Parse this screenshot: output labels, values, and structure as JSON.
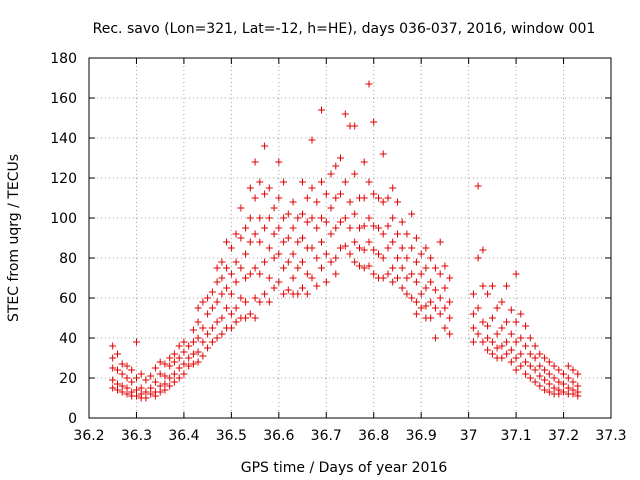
{
  "chart_data": {
    "type": "scatter",
    "title": "Rec. savo (Lon=321, Lat=-12, h=HE), days 036-037, 2016, window 001",
    "xlabel": "GPS time / Days of year 2016",
    "ylabel": "STEC from uqrg / TECUs",
    "xlim": [
      36.2,
      37.3
    ],
    "ylim": [
      0,
      180
    ],
    "xticks": [
      "36.2",
      "36.3",
      "36.4",
      "36.5",
      "36.6",
      "36.7",
      "36.8",
      "36.9",
      "37",
      "37.1",
      "37.2",
      "37.3"
    ],
    "yticks": [
      "0",
      "20",
      "40",
      "60",
      "80",
      "100",
      "120",
      "140",
      "160",
      "180"
    ],
    "grid": true,
    "marker": "+",
    "color": "#e00000",
    "points": [
      [
        36.25,
        36
      ],
      [
        36.25,
        30
      ],
      [
        36.25,
        25
      ],
      [
        36.25,
        19
      ],
      [
        36.25,
        15
      ],
      [
        36.26,
        32
      ],
      [
        36.26,
        24
      ],
      [
        36.26,
        17
      ],
      [
        36.26,
        14
      ],
      [
        36.27,
        27
      ],
      [
        36.27,
        22
      ],
      [
        36.27,
        16
      ],
      [
        36.27,
        13
      ],
      [
        36.28,
        26
      ],
      [
        36.28,
        20
      ],
      [
        36.28,
        15
      ],
      [
        36.28,
        12
      ],
      [
        36.29,
        24
      ],
      [
        36.29,
        18
      ],
      [
        36.29,
        13
      ],
      [
        36.29,
        11
      ],
      [
        36.3,
        38
      ],
      [
        36.3,
        20
      ],
      [
        36.3,
        14
      ],
      [
        36.3,
        11
      ],
      [
        36.31,
        22
      ],
      [
        36.31,
        15
      ],
      [
        36.31,
        12
      ],
      [
        36.31,
        10
      ],
      [
        36.32,
        19
      ],
      [
        36.32,
        13
      ],
      [
        36.32,
        10
      ],
      [
        36.33,
        21
      ],
      [
        36.33,
        15
      ],
      [
        36.33,
        12
      ],
      [
        36.34,
        25
      ],
      [
        36.34,
        18
      ],
      [
        36.34,
        13
      ],
      [
        36.34,
        11
      ],
      [
        36.35,
        28
      ],
      [
        36.35,
        22
      ],
      [
        36.35,
        16
      ],
      [
        36.35,
        13
      ],
      [
        36.36,
        27
      ],
      [
        36.36,
        21
      ],
      [
        36.36,
        17
      ],
      [
        36.36,
        14
      ],
      [
        36.37,
        30
      ],
      [
        36.37,
        26
      ],
      [
        36.37,
        20
      ],
      [
        36.37,
        16
      ],
      [
        36.38,
        32
      ],
      [
        36.38,
        28
      ],
      [
        36.38,
        22
      ],
      [
        36.38,
        18
      ],
      [
        36.39,
        36
      ],
      [
        36.39,
        30
      ],
      [
        36.39,
        25
      ],
      [
        36.39,
        20
      ],
      [
        36.4,
        38
      ],
      [
        36.4,
        33
      ],
      [
        36.4,
        27
      ],
      [
        36.4,
        22
      ],
      [
        36.41,
        36
      ],
      [
        36.41,
        30
      ],
      [
        36.41,
        26
      ],
      [
        36.42,
        44
      ],
      [
        36.42,
        38
      ],
      [
        36.42,
        32
      ],
      [
        36.42,
        27
      ],
      [
        36.43,
        55
      ],
      [
        36.43,
        48
      ],
      [
        36.43,
        40
      ],
      [
        36.43,
        33
      ],
      [
        36.43,
        28
      ],
      [
        36.44,
        58
      ],
      [
        36.44,
        45
      ],
      [
        36.44,
        38
      ],
      [
        36.44,
        31
      ],
      [
        36.45,
        60
      ],
      [
        36.45,
        52
      ],
      [
        36.45,
        42
      ],
      [
        36.45,
        35
      ],
      [
        36.46,
        63
      ],
      [
        36.46,
        55
      ],
      [
        36.46,
        45
      ],
      [
        36.46,
        38
      ],
      [
        36.47,
        75
      ],
      [
        36.47,
        68
      ],
      [
        36.47,
        58
      ],
      [
        36.47,
        48
      ],
      [
        36.47,
        40
      ],
      [
        36.48,
        78
      ],
      [
        36.48,
        70
      ],
      [
        36.48,
        62
      ],
      [
        36.48,
        50
      ],
      [
        36.48,
        42
      ],
      [
        36.49,
        88
      ],
      [
        36.49,
        75
      ],
      [
        36.49,
        65
      ],
      [
        36.49,
        55
      ],
      [
        36.49,
        45
      ],
      [
        36.5,
        85
      ],
      [
        36.5,
        72
      ],
      [
        36.5,
        62
      ],
      [
        36.5,
        52
      ],
      [
        36.5,
        45
      ],
      [
        36.51,
        92
      ],
      [
        36.51,
        78
      ],
      [
        36.51,
        68
      ],
      [
        36.51,
        55
      ],
      [
        36.51,
        48
      ],
      [
        36.52,
        105
      ],
      [
        36.52,
        90
      ],
      [
        36.52,
        75
      ],
      [
        36.52,
        60
      ],
      [
        36.52,
        50
      ],
      [
        36.53,
        95
      ],
      [
        36.53,
        82
      ],
      [
        36.53,
        70
      ],
      [
        36.53,
        58
      ],
      [
        36.53,
        50
      ],
      [
        36.54,
        115
      ],
      [
        36.54,
        100
      ],
      [
        36.54,
        88
      ],
      [
        36.54,
        72
      ],
      [
        36.54,
        52
      ],
      [
        36.55,
        128
      ],
      [
        36.55,
        110
      ],
      [
        36.55,
        92
      ],
      [
        36.55,
        75
      ],
      [
        36.55,
        60
      ],
      [
        36.55,
        50
      ],
      [
        36.56,
        118
      ],
      [
        36.56,
        100
      ],
      [
        36.56,
        88
      ],
      [
        36.56,
        72
      ],
      [
        36.56,
        58
      ],
      [
        36.57,
        136
      ],
      [
        36.57,
        112
      ],
      [
        36.57,
        95
      ],
      [
        36.57,
        78
      ],
      [
        36.57,
        62
      ],
      [
        36.58,
        115
      ],
      [
        36.58,
        100
      ],
      [
        36.58,
        85
      ],
      [
        36.58,
        70
      ],
      [
        36.58,
        58
      ],
      [
        36.59,
        105
      ],
      [
        36.59,
        92
      ],
      [
        36.59,
        80
      ],
      [
        36.59,
        65
      ],
      [
        36.6,
        128
      ],
      [
        36.6,
        110
      ],
      [
        36.6,
        95
      ],
      [
        36.6,
        82
      ],
      [
        36.6,
        68
      ],
      [
        36.61,
        118
      ],
      [
        36.61,
        100
      ],
      [
        36.61,
        88
      ],
      [
        36.61,
        75
      ],
      [
        36.61,
        62
      ],
      [
        36.62,
        102
      ],
      [
        36.62,
        90
      ],
      [
        36.62,
        78
      ],
      [
        36.62,
        64
      ],
      [
        36.63,
        108
      ],
      [
        36.63,
        95
      ],
      [
        36.63,
        82
      ],
      [
        36.63,
        70
      ],
      [
        36.63,
        62
      ],
      [
        36.64,
        100
      ],
      [
        36.64,
        88
      ],
      [
        36.64,
        75
      ],
      [
        36.64,
        62
      ],
      [
        36.65,
        118
      ],
      [
        36.65,
        102
      ],
      [
        36.65,
        90
      ],
      [
        36.65,
        78
      ],
      [
        36.65,
        65
      ],
      [
        36.66,
        110
      ],
      [
        36.66,
        98
      ],
      [
        36.66,
        85
      ],
      [
        36.66,
        72
      ],
      [
        36.66,
        62
      ],
      [
        36.67,
        139
      ],
      [
        36.67,
        115
      ],
      [
        36.67,
        100
      ],
      [
        36.67,
        85
      ],
      [
        36.67,
        70
      ],
      [
        36.68,
        108
      ],
      [
        36.68,
        95
      ],
      [
        36.68,
        80
      ],
      [
        36.68,
        66
      ],
      [
        36.69,
        154
      ],
      [
        36.69,
        118
      ],
      [
        36.69,
        100
      ],
      [
        36.69,
        88
      ],
      [
        36.69,
        75
      ],
      [
        36.7,
        112
      ],
      [
        36.7,
        98
      ],
      [
        36.7,
        82
      ],
      [
        36.7,
        68
      ],
      [
        36.71,
        122
      ],
      [
        36.71,
        105
      ],
      [
        36.71,
        92
      ],
      [
        36.71,
        78
      ],
      [
        36.72,
        126
      ],
      [
        36.72,
        110
      ],
      [
        36.72,
        95
      ],
      [
        36.72,
        80
      ],
      [
        36.72,
        72
      ],
      [
        36.73,
        130
      ],
      [
        36.73,
        112
      ],
      [
        36.73,
        98
      ],
      [
        36.73,
        85
      ],
      [
        36.74,
        152
      ],
      [
        36.74,
        118
      ],
      [
        36.74,
        100
      ],
      [
        36.74,
        86
      ],
      [
        36.75,
        146
      ],
      [
        36.75,
        108
      ],
      [
        36.75,
        95
      ],
      [
        36.75,
        82
      ],
      [
        36.76,
        146
      ],
      [
        36.76,
        122
      ],
      [
        36.76,
        102
      ],
      [
        36.76,
        88
      ],
      [
        36.76,
        78
      ],
      [
        36.77,
        110
      ],
      [
        36.77,
        95
      ],
      [
        36.77,
        85
      ],
      [
        36.77,
        76
      ],
      [
        36.78,
        128
      ],
      [
        36.78,
        110
      ],
      [
        36.78,
        96
      ],
      [
        36.78,
        84
      ],
      [
        36.78,
        75
      ],
      [
        36.79,
        167
      ],
      [
        36.79,
        118
      ],
      [
        36.79,
        100
      ],
      [
        36.79,
        88
      ],
      [
        36.79,
        76
      ],
      [
        36.8,
        148
      ],
      [
        36.8,
        112
      ],
      [
        36.8,
        96
      ],
      [
        36.8,
        84
      ],
      [
        36.8,
        72
      ],
      [
        36.81,
        110
      ],
      [
        36.81,
        95
      ],
      [
        36.81,
        82
      ],
      [
        36.81,
        70
      ],
      [
        36.82,
        132
      ],
      [
        36.82,
        108
      ],
      [
        36.82,
        92
      ],
      [
        36.82,
        80
      ],
      [
        36.82,
        70
      ],
      [
        36.83,
        110
      ],
      [
        36.83,
        96
      ],
      [
        36.83,
        85
      ],
      [
        36.83,
        72
      ],
      [
        36.84,
        115
      ],
      [
        36.84,
        100
      ],
      [
        36.84,
        88
      ],
      [
        36.84,
        75
      ],
      [
        36.84,
        68
      ],
      [
        36.85,
        108
      ],
      [
        36.85,
        92
      ],
      [
        36.85,
        80
      ],
      [
        36.85,
        70
      ],
      [
        36.86,
        98
      ],
      [
        36.86,
        85
      ],
      [
        36.86,
        75
      ],
      [
        36.86,
        65
      ],
      [
        36.87,
        92
      ],
      [
        36.87,
        80
      ],
      [
        36.87,
        70
      ],
      [
        36.87,
        62
      ],
      [
        36.88,
        102
      ],
      [
        36.88,
        85
      ],
      [
        36.88,
        72
      ],
      [
        36.88,
        60
      ],
      [
        36.89,
        90
      ],
      [
        36.89,
        78
      ],
      [
        36.89,
        68
      ],
      [
        36.89,
        58
      ],
      [
        36.89,
        52
      ],
      [
        36.9,
        82
      ],
      [
        36.9,
        72
      ],
      [
        36.9,
        62
      ],
      [
        36.9,
        55
      ],
      [
        36.91,
        85
      ],
      [
        36.91,
        75
      ],
      [
        36.91,
        65
      ],
      [
        36.91,
        56
      ],
      [
        36.91,
        50
      ],
      [
        36.92,
        80
      ],
      [
        36.92,
        68
      ],
      [
        36.92,
        58
      ],
      [
        36.92,
        50
      ],
      [
        36.93,
        75
      ],
      [
        36.93,
        64
      ],
      [
        36.93,
        55
      ],
      [
        36.93,
        40
      ],
      [
        36.94,
        88
      ],
      [
        36.94,
        72
      ],
      [
        36.94,
        60
      ],
      [
        36.94,
        52
      ],
      [
        36.95,
        76
      ],
      [
        36.95,
        65
      ],
      [
        36.95,
        55
      ],
      [
        36.95,
        45
      ],
      [
        36.96,
        70
      ],
      [
        36.96,
        58
      ],
      [
        36.96,
        50
      ],
      [
        36.96,
        42
      ],
      [
        37.01,
        62
      ],
      [
        37.01,
        52
      ],
      [
        37.01,
        45
      ],
      [
        37.01,
        38
      ],
      [
        37.02,
        116
      ],
      [
        37.02,
        80
      ],
      [
        37.02,
        55
      ],
      [
        37.02,
        42
      ],
      [
        37.03,
        84
      ],
      [
        37.03,
        66
      ],
      [
        37.03,
        48
      ],
      [
        37.03,
        38
      ],
      [
        37.04,
        62
      ],
      [
        37.04,
        46
      ],
      [
        37.04,
        40
      ],
      [
        37.04,
        34
      ],
      [
        37.05,
        66
      ],
      [
        37.05,
        50
      ],
      [
        37.05,
        38
      ],
      [
        37.05,
        32
      ],
      [
        37.06,
        55
      ],
      [
        37.06,
        42
      ],
      [
        37.06,
        35
      ],
      [
        37.06,
        30
      ],
      [
        37.07,
        58
      ],
      [
        37.07,
        45
      ],
      [
        37.07,
        36
      ],
      [
        37.07,
        30
      ],
      [
        37.08,
        66
      ],
      [
        37.08,
        48
      ],
      [
        37.08,
        38
      ],
      [
        37.08,
        32
      ],
      [
        37.09,
        54
      ],
      [
        37.09,
        42
      ],
      [
        37.09,
        34
      ],
      [
        37.09,
        28
      ],
      [
        37.1,
        72
      ],
      [
        37.1,
        48
      ],
      [
        37.1,
        38
      ],
      [
        37.1,
        30
      ],
      [
        37.1,
        24
      ],
      [
        37.11,
        52
      ],
      [
        37.11,
        40
      ],
      [
        37.11,
        32
      ],
      [
        37.11,
        26
      ],
      [
        37.12,
        46
      ],
      [
        37.12,
        36
      ],
      [
        37.12,
        28
      ],
      [
        37.12,
        22
      ],
      [
        37.13,
        40
      ],
      [
        37.13,
        32
      ],
      [
        37.13,
        26
      ],
      [
        37.13,
        20
      ],
      [
        37.14,
        36
      ],
      [
        37.14,
        30
      ],
      [
        37.14,
        24
      ],
      [
        37.14,
        18
      ],
      [
        37.15,
        32
      ],
      [
        37.15,
        26
      ],
      [
        37.15,
        21
      ],
      [
        37.15,
        16
      ],
      [
        37.16,
        30
      ],
      [
        37.16,
        24
      ],
      [
        37.16,
        19
      ],
      [
        37.16,
        14
      ],
      [
        37.17,
        28
      ],
      [
        37.17,
        22
      ],
      [
        37.17,
        17
      ],
      [
        37.17,
        13
      ],
      [
        37.18,
        26
      ],
      [
        37.18,
        20
      ],
      [
        37.18,
        15
      ],
      [
        37.18,
        12
      ],
      [
        37.19,
        24
      ],
      [
        37.19,
        18
      ],
      [
        37.19,
        14
      ],
      [
        37.19,
        12
      ],
      [
        37.2,
        22
      ],
      [
        37.2,
        17
      ],
      [
        37.2,
        13
      ],
      [
        37.21,
        26
      ],
      [
        37.21,
        20
      ],
      [
        37.21,
        15
      ],
      [
        37.21,
        12
      ],
      [
        37.22,
        24
      ],
      [
        37.22,
        18
      ],
      [
        37.22,
        14
      ],
      [
        37.22,
        12
      ],
      [
        37.23,
        22
      ],
      [
        37.23,
        16
      ],
      [
        37.23,
        13
      ],
      [
        37.23,
        11
      ]
    ]
  }
}
